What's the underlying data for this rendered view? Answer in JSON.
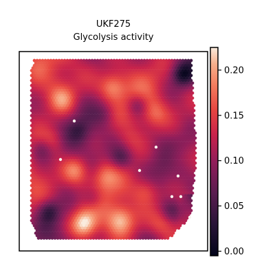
{
  "chart_data": {
    "type": "heatmap",
    "subtitle": "UKF275",
    "title": "Glycolysis activity",
    "xlabel": "",
    "ylabel": "",
    "axis_ticks_visible": false,
    "grid": false,
    "colormap": "rocket",
    "colorbar": {
      "vmin": -0.005,
      "vmax": 0.225,
      "ticks": [
        0.0,
        0.05,
        0.1,
        0.15,
        0.2
      ],
      "tick_labels": [
        "0.00",
        "0.05",
        "0.10",
        "0.15",
        "0.20"
      ]
    },
    "value_range": [
      0.0,
      0.225
    ],
    "spots": {
      "shape": "hexagonal-grid",
      "columns": 62,
      "rows": 72
    },
    "hotspots": [
      {
        "x": 0.33,
        "y": 0.92,
        "value": 0.22
      },
      {
        "x": 0.55,
        "y": 0.9,
        "value": 0.19
      },
      {
        "x": 0.28,
        "y": 0.62,
        "value": 0.19
      },
      {
        "x": 0.45,
        "y": 0.65,
        "value": 0.17
      },
      {
        "x": 0.7,
        "y": 0.73,
        "value": 0.17
      },
      {
        "x": 0.8,
        "y": 0.92,
        "value": 0.16
      },
      {
        "x": 0.2,
        "y": 0.22,
        "value": 0.18
      },
      {
        "x": 0.5,
        "y": 0.15,
        "value": 0.19
      },
      {
        "x": 0.75,
        "y": 0.3,
        "value": 0.16
      },
      {
        "x": 0.15,
        "y": 0.45,
        "value": 0.16
      },
      {
        "x": 0.6,
        "y": 0.45,
        "value": 0.14
      },
      {
        "x": 0.88,
        "y": 0.55,
        "value": 0.15
      }
    ],
    "coldspots": [
      {
        "x": 0.12,
        "y": 0.85,
        "value": 0.05
      },
      {
        "x": 0.38,
        "y": 0.78,
        "value": 0.07
      },
      {
        "x": 0.55,
        "y": 0.55,
        "value": 0.06
      },
      {
        "x": 0.3,
        "y": 0.4,
        "value": 0.08
      },
      {
        "x": 0.65,
        "y": 0.25,
        "value": 0.06
      },
      {
        "x": 0.92,
        "y": 0.08,
        "value": 0.03
      },
      {
        "x": 0.85,
        "y": 0.85,
        "value": 0.07
      },
      {
        "x": 0.08,
        "y": 0.5,
        "value": 0.07
      },
      {
        "x": 0.45,
        "y": 0.3,
        "value": 0.09
      }
    ]
  }
}
